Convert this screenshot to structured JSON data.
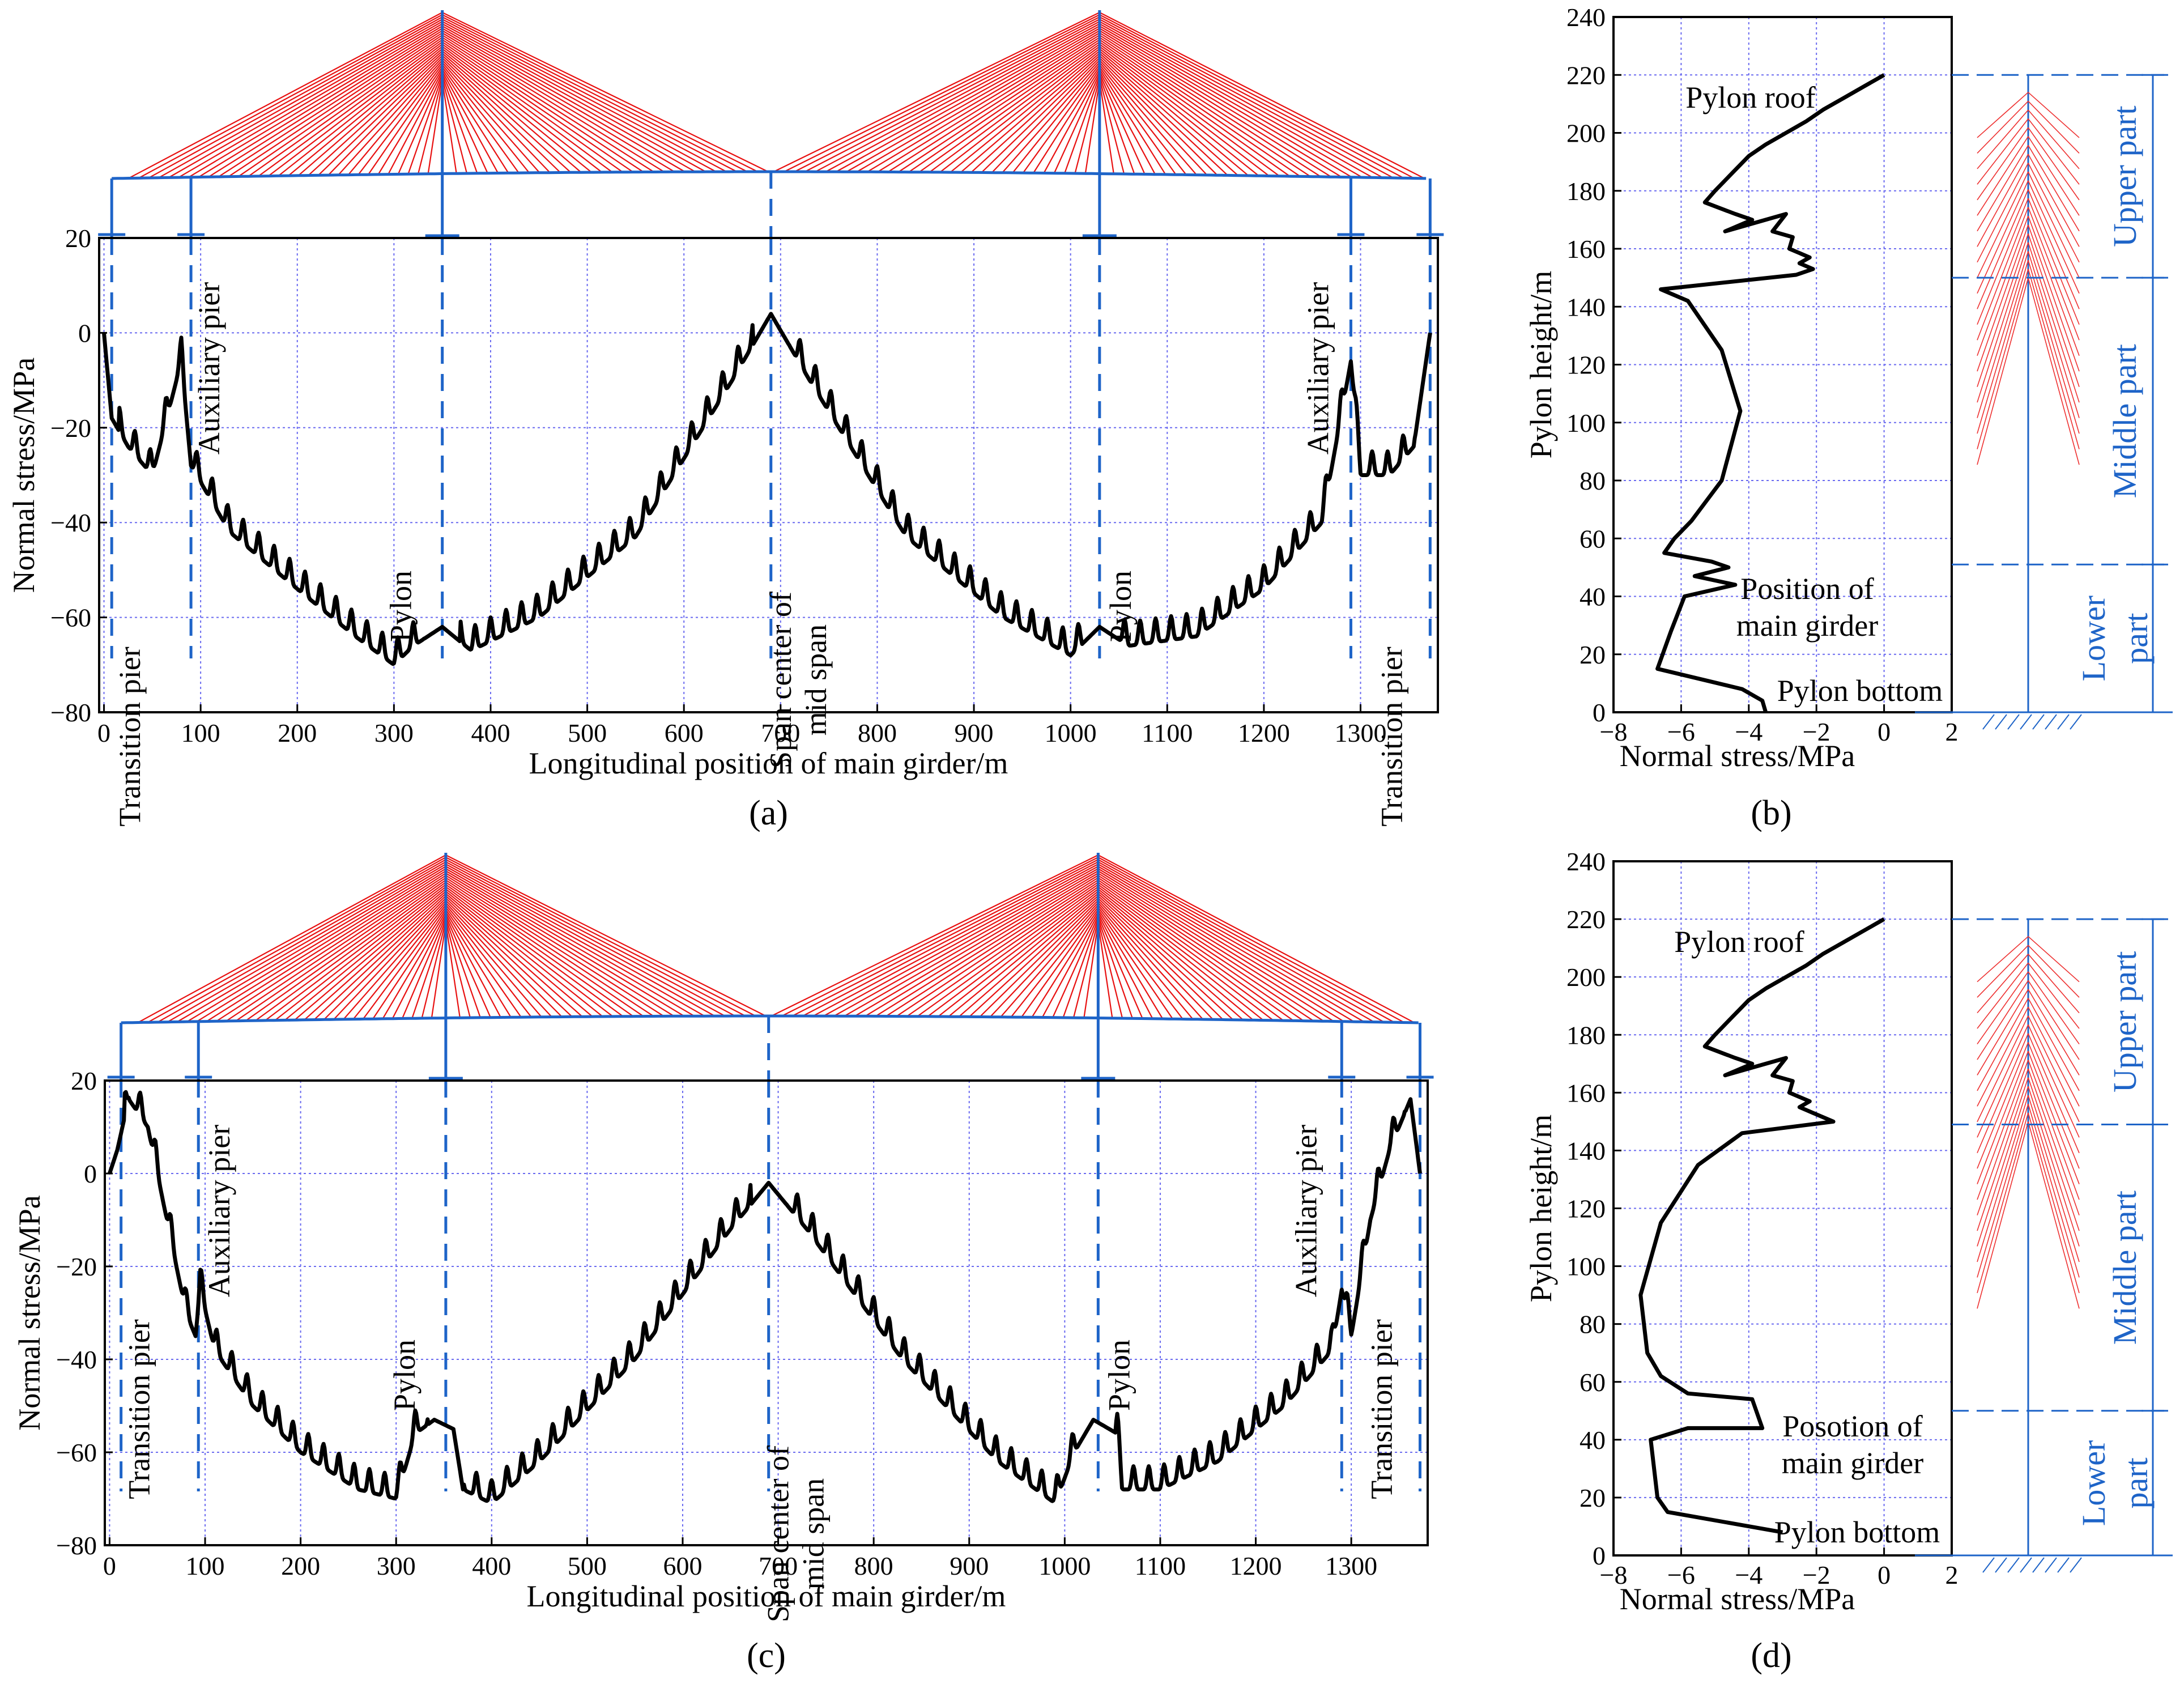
{
  "panel_labels": {
    "a": "(a)",
    "b": "(b)",
    "c": "(c)",
    "d": "(d)"
  },
  "chart_data": [
    {
      "id": "a",
      "type": "line",
      "title": "",
      "xlabel": "Longitudinal position of main girder/m",
      "ylabel": "Normal stress/MPa",
      "xlim": [
        -5,
        1380
      ],
      "ylim": [
        -80,
        20
      ],
      "xticks": [
        0,
        100,
        200,
        300,
        400,
        500,
        600,
        700,
        800,
        900,
        1000,
        1100,
        1200,
        1300
      ],
      "yticks": [
        -80,
        -60,
        -40,
        -20,
        0,
        20
      ],
      "grid": true,
      "piers": [
        {
          "x": 8,
          "label": "Transition pier"
        },
        {
          "x": 90,
          "label": "Auxiliary pier"
        },
        {
          "x": 350,
          "label": "Pylon"
        },
        {
          "x": 690,
          "label": "Span center of mid span"
        },
        {
          "x": 1030,
          "label": "Pylon"
        },
        {
          "x": 1290,
          "label": "Auxiliary pier"
        },
        {
          "x": 1372,
          "label": "Transition pier"
        }
      ],
      "series": [
        {
          "name": "Normal stress",
          "x": [
            0,
            8,
            25,
            50,
            80,
            90,
            130,
            200,
            260,
            300,
            320,
            350,
            380,
            450,
            550,
            650,
            690,
            730,
            830,
            930,
            1000,
            1030,
            1060,
            1130,
            1200,
            1260,
            1290,
            1300,
            1330,
            1355,
            1372
          ],
          "y": [
            0,
            -18,
            -24,
            -30,
            -6,
            -28,
            -42,
            -54,
            -64,
            -70,
            -66,
            -62,
            -67,
            -60,
            -43,
            -10,
            4,
            -10,
            -43,
            -60,
            -68,
            -62,
            -66,
            -64,
            -54,
            -40,
            -6,
            -30,
            -30,
            -24,
            0
          ]
        }
      ]
    },
    {
      "id": "b",
      "type": "line",
      "title": "",
      "xlabel": "Normal stress/MPa",
      "ylabel": "Pylon height/m",
      "xlim": [
        -8,
        2
      ],
      "ylim": [
        0,
        240
      ],
      "xticks": [
        -8,
        -6,
        -4,
        -2,
        0,
        2
      ],
      "yticks": [
        0,
        20,
        40,
        60,
        80,
        100,
        120,
        140,
        160,
        180,
        200,
        220,
        240
      ],
      "grid": true,
      "annotations": [
        "Pylon roof",
        "Position of main girder",
        "Pylon bottom"
      ],
      "zones": [
        "Upper part",
        "Middle part",
        "Lower part"
      ],
      "series": [
        {
          "name": "Normal stress",
          "x": [
            0,
            -0.6,
            -1.2,
            -1.8,
            -2.3,
            -2.9,
            -3.5,
            -4.0,
            -4.5,
            -5.0,
            -5.3,
            -4.4,
            -3.9,
            -4.7,
            -2.9,
            -3.3,
            -2.7,
            -2.8,
            -2.2,
            -2.5,
            -2.1,
            -2.6,
            -6.6,
            -5.8,
            -4.8,
            -4.25,
            -4.8,
            -5.7,
            -6.2,
            -6.5,
            -5.1,
            -4.6,
            -5.6,
            -4.4,
            -5.9,
            -6.3,
            -6.7,
            -4.2,
            -3.6,
            -3.5
          ],
          "y": [
            220,
            216,
            212,
            208,
            204,
            200,
            196,
            192,
            186,
            180,
            176,
            172,
            170,
            166,
            172,
            166,
            164,
            160,
            157,
            155,
            153,
            151,
            146,
            142,
            125,
            104,
            80,
            66,
            60,
            55,
            52,
            50,
            47,
            44,
            40,
            28,
            15,
            8,
            4,
            0
          ]
        }
      ]
    },
    {
      "id": "c",
      "type": "line",
      "title": "",
      "xlabel": "Longitudinal position of main girder/m",
      "ylabel": "Normal stress/MPa",
      "xlim": [
        -5,
        1380
      ],
      "ylim": [
        -80,
        20
      ],
      "xticks": [
        0,
        100,
        200,
        300,
        400,
        500,
        600,
        700,
        800,
        900,
        1000,
        1100,
        1200,
        1300
      ],
      "yticks": [
        -80,
        -60,
        -40,
        -20,
        0,
        20
      ],
      "grid": true,
      "piers": [
        {
          "x": 12,
          "label": "Transition pier"
        },
        {
          "x": 93,
          "label": "Auxiliary pier"
        },
        {
          "x": 352,
          "label": "Pylon"
        },
        {
          "x": 690,
          "label": "Span center of mid span"
        },
        {
          "x": 1035,
          "label": "Pylon"
        },
        {
          "x": 1290,
          "label": "Auxiliary pier"
        },
        {
          "x": 1372,
          "label": "Transition pier"
        }
      ],
      "series": [
        {
          "name": "Normal stress",
          "x": [
            0,
            8,
            20,
            40,
            60,
            80,
            90,
            95,
            110,
            150,
            200,
            260,
            300,
            320,
            340,
            360,
            370,
            400,
            450,
            550,
            650,
            690,
            730,
            830,
            930,
            990,
            1010,
            1030,
            1055,
            1060,
            1100,
            1160,
            1230,
            1280,
            1290,
            1300,
            1320,
            1340,
            1362,
            1372
          ],
          "y": [
            0,
            5,
            16,
            10,
            -10,
            -30,
            -35,
            -25,
            -38,
            -50,
            -60,
            -68,
            -70,
            -56,
            -53,
            -55,
            -68,
            -71,
            -62,
            -40,
            -12,
            -2,
            -12,
            -40,
            -62,
            -71,
            -60,
            -53,
            -56,
            -68,
            -68,
            -62,
            -50,
            -38,
            -25,
            -35,
            -10,
            5,
            16,
            0
          ]
        }
      ]
    },
    {
      "id": "d",
      "type": "line",
      "title": "",
      "xlabel": "Normal stress/MPa",
      "ylabel": "Pylon height/m",
      "xlim": [
        -8,
        2
      ],
      "ylim": [
        0,
        240
      ],
      "xticks": [
        -8,
        -6,
        -4,
        -2,
        0,
        2
      ],
      "yticks": [
        0,
        20,
        40,
        60,
        80,
        100,
        120,
        140,
        160,
        180,
        200,
        220,
        240
      ],
      "grid": true,
      "annotations": [
        "Pylon roof",
        "Posotion of main girder",
        "Pylon bottom"
      ],
      "zones": [
        "Upper part",
        "Middle part",
        "Lower part"
      ],
      "series": [
        {
          "name": "Normal stress",
          "x": [
            0,
            -0.6,
            -1.2,
            -1.8,
            -2.3,
            -2.9,
            -3.5,
            -4.0,
            -4.5,
            -5.0,
            -5.3,
            -4.4,
            -3.9,
            -4.7,
            -2.9,
            -3.3,
            -2.7,
            -2.8,
            -2.2,
            -2.5,
            -2.1,
            -1.5,
            -4.2,
            -5.5,
            -6.6,
            -7.2,
            -7.0,
            -6.6,
            -5.8,
            -3.9,
            -3.6,
            -5.8,
            -6.9,
            -6.7,
            -6.4,
            -3.0
          ],
          "y": [
            220,
            216,
            212,
            208,
            204,
            200,
            196,
            192,
            186,
            180,
            176,
            172,
            170,
            166,
            172,
            166,
            164,
            160,
            157,
            155,
            153,
            150,
            146,
            135,
            115,
            90,
            70,
            62,
            56,
            54,
            44,
            44,
            40,
            20,
            15,
            8
          ]
        }
      ]
    }
  ]
}
